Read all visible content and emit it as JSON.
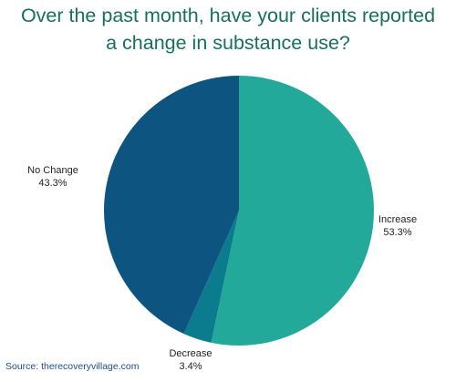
{
  "title_lines": [
    "Over the past month, have your clients reported",
    "a change in substance use?"
  ],
  "source": "Source: therecoveryvillage.com",
  "chart_data": {
    "type": "pie",
    "title": "Over the past month, have your clients reported a change in substance use?",
    "slices": [
      {
        "label": "Increase",
        "value": 53.3,
        "display": "53.3%",
        "color": "#22a99a"
      },
      {
        "label": "Decrease",
        "value": 3.4,
        "display": "3.4%",
        "color": "#0b7c8e"
      },
      {
        "label": "No Change",
        "value": 43.3,
        "display": "43.3%",
        "color": "#0d5580"
      }
    ],
    "start": "12 o'clock",
    "direction": "clockwise"
  }
}
